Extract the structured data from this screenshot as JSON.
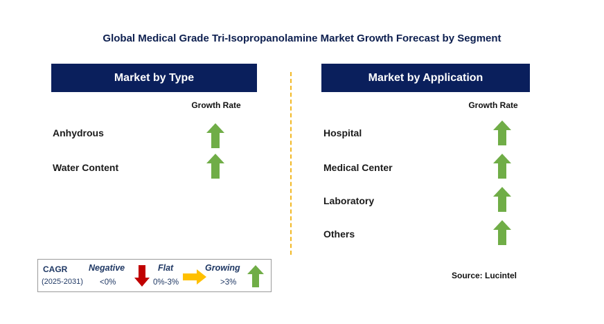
{
  "title": "Global Medical Grade Tri-Isopropanolamine Market Growth Forecast by Segment",
  "type_panel": {
    "header": "Market by Type",
    "growth_label": "Growth Rate",
    "segments": [
      {
        "label": "Anhydrous",
        "trend": "growing"
      },
      {
        "label": "Water Content",
        "trend": "growing"
      }
    ]
  },
  "application_panel": {
    "header": "Market by Application",
    "growth_label": "Growth Rate",
    "segments": [
      {
        "label": "Hospital",
        "trend": "growing"
      },
      {
        "label": "Medical Center",
        "trend": "growing"
      },
      {
        "label": "Laboratory",
        "trend": "growing"
      },
      {
        "label": "Others",
        "trend": "growing"
      }
    ]
  },
  "legend": {
    "cagr_label": "CAGR",
    "period": "(2025-2031)",
    "negative": {
      "label": "Negative",
      "range": "<0%",
      "color": "#c00000",
      "icon": "arrow-down-icon"
    },
    "flat": {
      "label": "Flat",
      "range": "0%-3%",
      "color": "#ffc000",
      "icon": "arrow-right-icon"
    },
    "growing": {
      "label": "Growing",
      "range": ">3%",
      "color": "#70ad47",
      "icon": "arrow-up-icon"
    }
  },
  "source": "Source: Lucintel",
  "colors": {
    "header_bg": "#0a1f5c",
    "divider": "#f2b824",
    "up_arrow": "#70ad47"
  }
}
